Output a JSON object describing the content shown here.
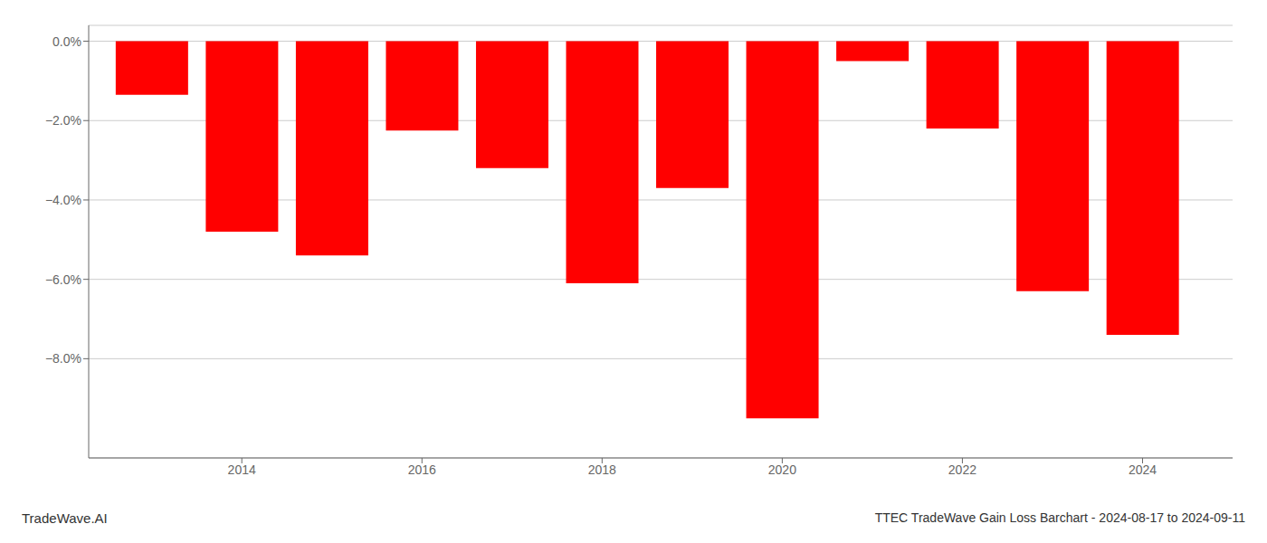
{
  "chart_data": {
    "type": "bar",
    "title": "TTEC TradeWave Gain Loss Barchart - 2024-08-17 to 2024-09-11",
    "annotations": [
      "TradeWave.AI"
    ],
    "x": [
      2013,
      2014,
      2015,
      2016,
      2017,
      2018,
      2019,
      2020,
      2021,
      2022,
      2023,
      2024
    ],
    "values": [
      -1.35,
      -4.8,
      -5.4,
      -2.25,
      -3.2,
      -6.1,
      -3.7,
      -9.5,
      -0.5,
      -2.2,
      -6.3,
      -7.4
    ],
    "color": "#ff0000",
    "xlim": [
      2012.3,
      2025.0
    ],
    "xticks": [
      2014,
      2016,
      2018,
      2020,
      2022,
      2024
    ],
    "ylim": [
      -10.5,
      0.4
    ],
    "yticks": [
      {
        "value": 0.0,
        "label": "0.0%"
      },
      {
        "value": -2.0,
        "label": "−2.0%"
      },
      {
        "value": -4.0,
        "label": "−4.0%"
      },
      {
        "value": -6.0,
        "label": "−6.0%"
      },
      {
        "value": -8.0,
        "label": "−8.0%"
      }
    ],
    "grid": true
  }
}
